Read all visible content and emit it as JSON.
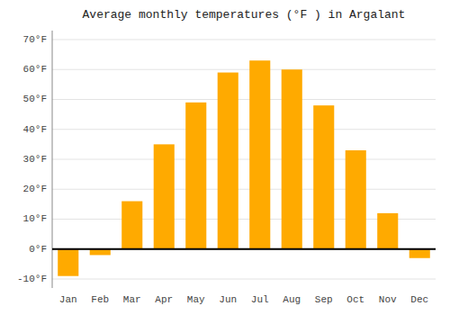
{
  "chart_data": {
    "type": "bar",
    "title": "Average monthly temperatures (°F ) in Argalant",
    "categories": [
      "Jan",
      "Feb",
      "Mar",
      "Apr",
      "May",
      "Jun",
      "Jul",
      "Aug",
      "Sep",
      "Oct",
      "Nov",
      "Dec"
    ],
    "values": [
      -9,
      -2,
      16,
      35,
      49,
      59,
      63,
      60,
      48,
      33,
      12,
      -3
    ],
    "color": "#FFAA00",
    "ylim": [
      -13,
      73
    ],
    "yticks": [
      {
        "value": -10,
        "label": "-10°F"
      },
      {
        "value": 0,
        "label": "0°F"
      },
      {
        "value": 10,
        "label": "10°F"
      },
      {
        "value": 20,
        "label": "20°F"
      },
      {
        "value": 30,
        "label": "30°F"
      },
      {
        "value": 40,
        "label": "40°F"
      },
      {
        "value": 50,
        "label": "50°F"
      },
      {
        "value": 60,
        "label": "60°F"
      },
      {
        "value": 70,
        "label": "70°F"
      }
    ],
    "grid": true
  }
}
